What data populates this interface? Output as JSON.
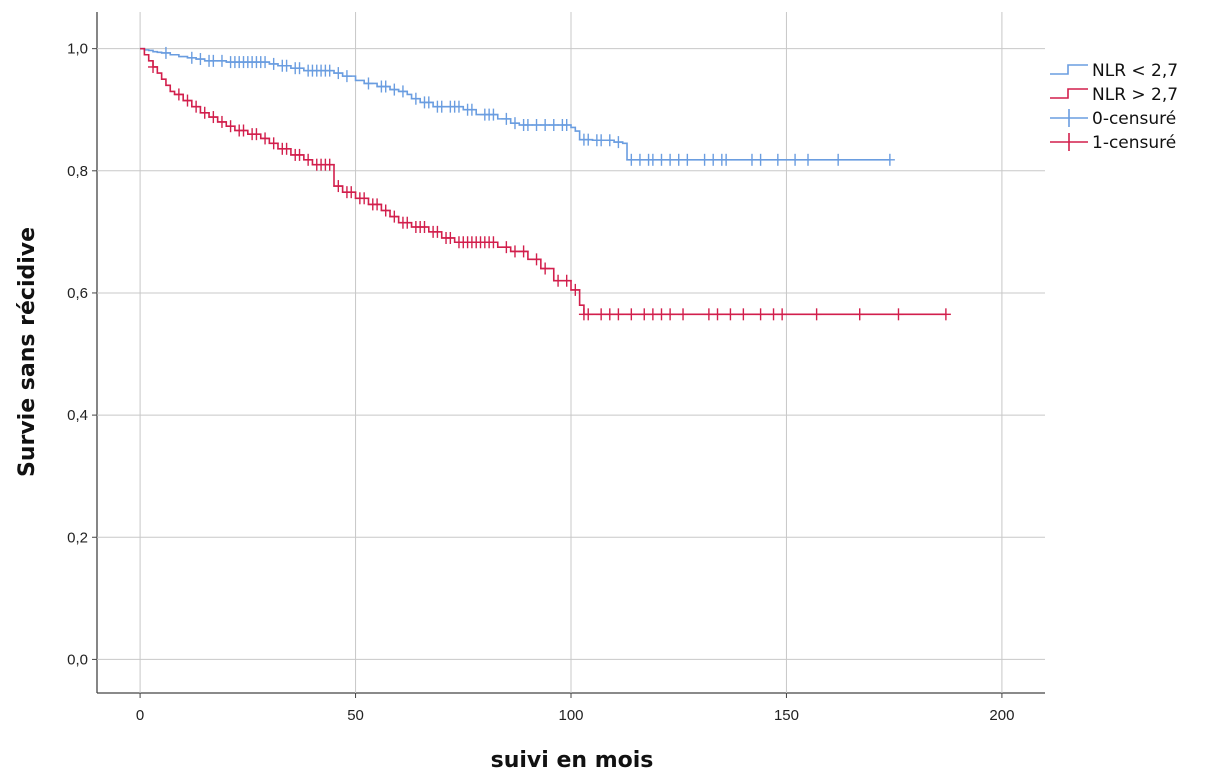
{
  "chart_data": {
    "type": "line",
    "step": true,
    "xlabel": "suivi en mois",
    "ylabel": "Survie sans récidive",
    "xlim": [
      -10,
      210
    ],
    "ylim": [
      -0.055,
      1.06
    ],
    "x_ticks": [
      0,
      50,
      100,
      150,
      200
    ],
    "y_ticks": [
      0.0,
      0.2,
      0.4,
      0.6,
      0.8,
      1.0
    ],
    "x_tick_labels": [
      "0",
      "50",
      "100",
      "150",
      "200"
    ],
    "y_tick_labels": [
      "0,0",
      "0,2",
      "0,4",
      "0,6",
      "0,8",
      "1,0"
    ],
    "grid": true,
    "legend_position": "top-right",
    "legend": [
      {
        "label": "NLR < 2,7",
        "kind": "step",
        "color": "#6a9de0"
      },
      {
        "label": "NLR > 2,7",
        "kind": "step",
        "color": "#d21f4c"
      },
      {
        "label": "0-censuré",
        "kind": "censor",
        "color": "#6a9de0"
      },
      {
        "label": "1-censuré",
        "kind": "censor",
        "color": "#d21f4c"
      }
    ],
    "series": [
      {
        "name": "NLR < 2,7",
        "color": "#6a9de0",
        "x": [
          0,
          1,
          2,
          3,
          4,
          5,
          7,
          9,
          11,
          13,
          15,
          20,
          30,
          32,
          35,
          38,
          45,
          47,
          50,
          52,
          55,
          58,
          60,
          62,
          63,
          65,
          68,
          75,
          78,
          83,
          86,
          88,
          100,
          101,
          102,
          105,
          110,
          112,
          113,
          174
        ],
        "y": [
          1.0,
          0.998,
          0.997,
          0.995,
          0.994,
          0.993,
          0.99,
          0.987,
          0.985,
          0.983,
          0.98,
          0.978,
          0.975,
          0.972,
          0.968,
          0.964,
          0.96,
          0.955,
          0.948,
          0.943,
          0.938,
          0.933,
          0.93,
          0.925,
          0.918,
          0.912,
          0.905,
          0.9,
          0.892,
          0.885,
          0.878,
          0.875,
          0.871,
          0.865,
          0.851,
          0.85,
          0.847,
          0.845,
          0.818,
          0.818
        ],
        "censored_x": [
          6,
          12,
          14,
          16,
          17,
          19,
          21,
          22,
          23,
          24,
          25,
          26,
          27,
          28,
          29,
          31,
          33,
          34,
          36,
          37,
          39,
          40,
          41,
          42,
          43,
          44,
          46,
          48,
          53,
          56,
          57,
          59,
          61,
          64,
          66,
          67,
          69,
          70,
          72,
          73,
          74,
          76,
          77,
          80,
          81,
          82,
          85,
          87,
          89,
          90,
          92,
          94,
          96,
          98,
          99,
          103,
          104,
          106,
          107,
          109,
          111,
          114,
          116,
          118,
          119,
          121,
          123,
          125,
          127,
          131,
          133,
          135,
          136,
          142,
          144,
          148,
          152,
          155,
          162,
          174
        ]
      },
      {
        "name": "NLR > 2,7",
        "color": "#d21f4c",
        "x": [
          0,
          1,
          2,
          3,
          4,
          5,
          6,
          7,
          8,
          10,
          12,
          14,
          16,
          18,
          20,
          22,
          25,
          28,
          30,
          32,
          35,
          38,
          40,
          45,
          47,
          50,
          53,
          56,
          58,
          60,
          63,
          67,
          70,
          73,
          83,
          86,
          90,
          93,
          96,
          100,
          102,
          103,
          187
        ],
        "y": [
          1.0,
          0.99,
          0.98,
          0.97,
          0.96,
          0.95,
          0.94,
          0.93,
          0.925,
          0.915,
          0.905,
          0.895,
          0.888,
          0.88,
          0.873,
          0.866,
          0.86,
          0.853,
          0.845,
          0.836,
          0.826,
          0.818,
          0.81,
          0.775,
          0.765,
          0.755,
          0.745,
          0.735,
          0.725,
          0.715,
          0.708,
          0.7,
          0.69,
          0.683,
          0.675,
          0.668,
          0.655,
          0.64,
          0.62,
          0.605,
          0.58,
          0.565,
          0.565
        ],
        "censored_x": [
          3,
          9,
          11,
          13,
          15,
          17,
          19,
          21,
          23,
          24,
          26,
          27,
          29,
          31,
          33,
          34,
          36,
          37,
          39,
          41,
          42,
          43,
          44,
          46,
          48,
          49,
          51,
          52,
          54,
          55,
          57,
          59,
          61,
          62,
          64,
          65,
          66,
          68,
          69,
          71,
          72,
          74,
          75,
          76,
          77,
          78,
          79,
          80,
          81,
          82,
          85,
          87,
          89,
          92,
          94,
          97,
          99,
          101,
          103,
          104,
          107,
          109,
          111,
          114,
          117,
          119,
          121,
          123,
          126,
          132,
          134,
          137,
          140,
          144,
          147,
          149,
          157,
          167,
          176,
          187
        ]
      }
    ]
  }
}
